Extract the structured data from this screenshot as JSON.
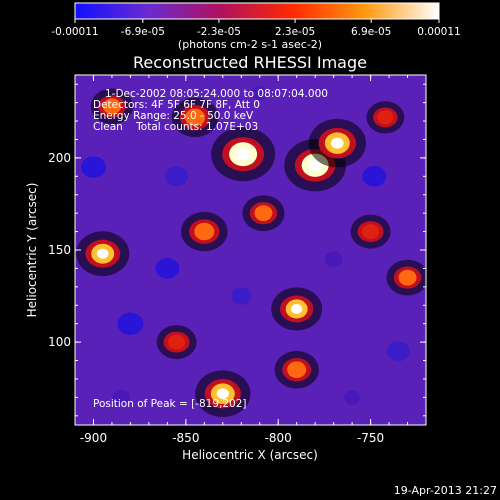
{
  "chart_data": {
    "type": "heatmap",
    "title": "Reconstructed RHESSI Image",
    "xlabel": "Heliocentric X (arcsec)",
    "ylabel": "Heliocentric Y (arcsec)",
    "xlim": [
      -910,
      -720
    ],
    "ylim": [
      55,
      245
    ],
    "x_ticks": [
      -900,
      -850,
      -800,
      -750
    ],
    "y_ticks": [
      100,
      150,
      200
    ],
    "info_lines": [
      "1-Dec-2002 08:05:24.000 to 08:07:04.000",
      "Detectors: 4F 5F 6F 7F 8F, Att 0",
      "Energy Range: 25.0 - 50.0 keV",
      "Clean    Total counts: 1.07E+03"
    ],
    "peak_label": "Position of Peak = [-819,202]",
    "peak": [
      -819,
      202
    ],
    "colorbar": {
      "min": -0.00011,
      "max": 0.00011,
      "ticks": [
        {
          "value": -0.00011,
          "label": "-0.00011"
        },
        {
          "value": -6.9e-05,
          "label": "-6.9e-05"
        },
        {
          "value": -2.3e-05,
          "label": "-2.3e-05"
        },
        {
          "value": 2.3e-05,
          "label": "2.3e-05"
        },
        {
          "value": 6.9e-05,
          "label": "6.9e-05"
        },
        {
          "value": 0.00011,
          "label": "0.00011"
        }
      ],
      "unit_label": "(photons cm-2 s-1 asec-2)",
      "colors": [
        "#1010ff",
        "#6a2bd0",
        "#b01060",
        "#ff2a00",
        "#ff9a10",
        "#ffffff"
      ]
    },
    "blobs": [
      {
        "x": -819,
        "y": 202,
        "v": 0.00011
      },
      {
        "x": -780,
        "y": 196,
        "v": 0.000105
      },
      {
        "x": -768,
        "y": 208,
        "v": 9.5e-05
      },
      {
        "x": -845,
        "y": 222,
        "v": 7e-05
      },
      {
        "x": -890,
        "y": 228,
        "v": 6e-05
      },
      {
        "x": -808,
        "y": 170,
        "v": 6e-05
      },
      {
        "x": -840,
        "y": 160,
        "v": 7e-05
      },
      {
        "x": -895,
        "y": 148,
        "v": 8.5e-05
      },
      {
        "x": -730,
        "y": 135,
        "v": 6e-05
      },
      {
        "x": -750,
        "y": 160,
        "v": 5.5e-05
      },
      {
        "x": -790,
        "y": 118,
        "v": 8e-05
      },
      {
        "x": -855,
        "y": 100,
        "v": 5.5e-05
      },
      {
        "x": -830,
        "y": 72,
        "v": 9e-05
      },
      {
        "x": -790,
        "y": 85,
        "v": 6.5e-05
      },
      {
        "x": -742,
        "y": 222,
        "v": 5e-05
      },
      {
        "x": -900,
        "y": 195,
        "v": -9.5e-05
      },
      {
        "x": -855,
        "y": 190,
        "v": -8.5e-05
      },
      {
        "x": -880,
        "y": 110,
        "v": -0.0001
      },
      {
        "x": -860,
        "y": 140,
        "v": -9e-05
      },
      {
        "x": -748,
        "y": 190,
        "v": -9e-05
      },
      {
        "x": -735,
        "y": 95,
        "v": -8.5e-05
      },
      {
        "x": -820,
        "y": 125,
        "v": -7e-05
      },
      {
        "x": -770,
        "y": 145,
        "v": -6e-05
      },
      {
        "x": -810,
        "y": 235,
        "v": -5e-05
      },
      {
        "x": -885,
        "y": 70,
        "v": -6e-05
      },
      {
        "x": -760,
        "y": 70,
        "v": -5e-05
      }
    ]
  },
  "footer": {
    "timestamp": "19-Apr-2013 21:27"
  }
}
